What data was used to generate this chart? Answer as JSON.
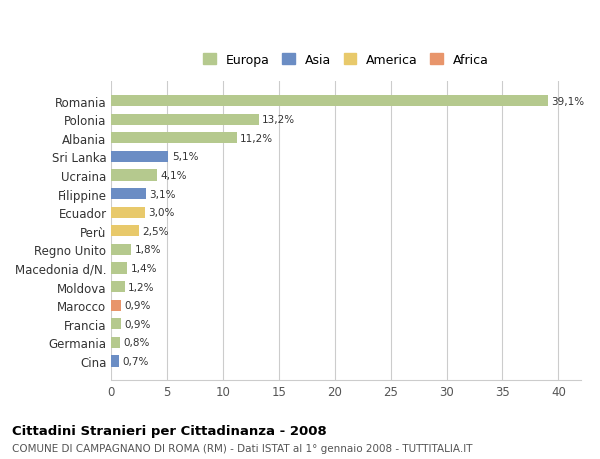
{
  "categories": [
    "Cina",
    "Germania",
    "Francia",
    "Marocco",
    "Moldova",
    "Macedonia d/N.",
    "Regno Unito",
    "Perù",
    "Ecuador",
    "Filippine",
    "Ucraina",
    "Sri Lanka",
    "Albania",
    "Polonia",
    "Romania"
  ],
  "values": [
    0.7,
    0.8,
    0.9,
    0.9,
    1.2,
    1.4,
    1.8,
    2.5,
    3.0,
    3.1,
    4.1,
    5.1,
    11.2,
    13.2,
    39.1
  ],
  "labels": [
    "0,7%",
    "0,8%",
    "0,9%",
    "0,9%",
    "1,2%",
    "1,4%",
    "1,8%",
    "2,5%",
    "3,0%",
    "3,1%",
    "4,1%",
    "5,1%",
    "11,2%",
    "13,2%",
    "39,1%"
  ],
  "colors": [
    "#6b8dc4",
    "#b5c98e",
    "#b5c98e",
    "#e8956b",
    "#b5c98e",
    "#b5c98e",
    "#b5c98e",
    "#e8c96b",
    "#e8c96b",
    "#6b8dc4",
    "#b5c98e",
    "#6b8dc4",
    "#b5c98e",
    "#b5c98e",
    "#b5c98e"
  ],
  "legend_labels": [
    "Europa",
    "Asia",
    "America",
    "Africa"
  ],
  "legend_colors": [
    "#b5c98e",
    "#6b8dc4",
    "#e8c96b",
    "#e8956b"
  ],
  "title": "Cittadini Stranieri per Cittadinanza - 2008",
  "subtitle": "COMUNE DI CAMPAGNANO DI ROMA (RM) - Dati ISTAT al 1° gennaio 2008 - TUTTITALIA.IT",
  "xlim": [
    0,
    42
  ],
  "xticks": [
    0,
    5,
    10,
    15,
    20,
    25,
    30,
    35,
    40
  ],
  "bg_color": "#ffffff",
  "grid_color": "#cccccc"
}
